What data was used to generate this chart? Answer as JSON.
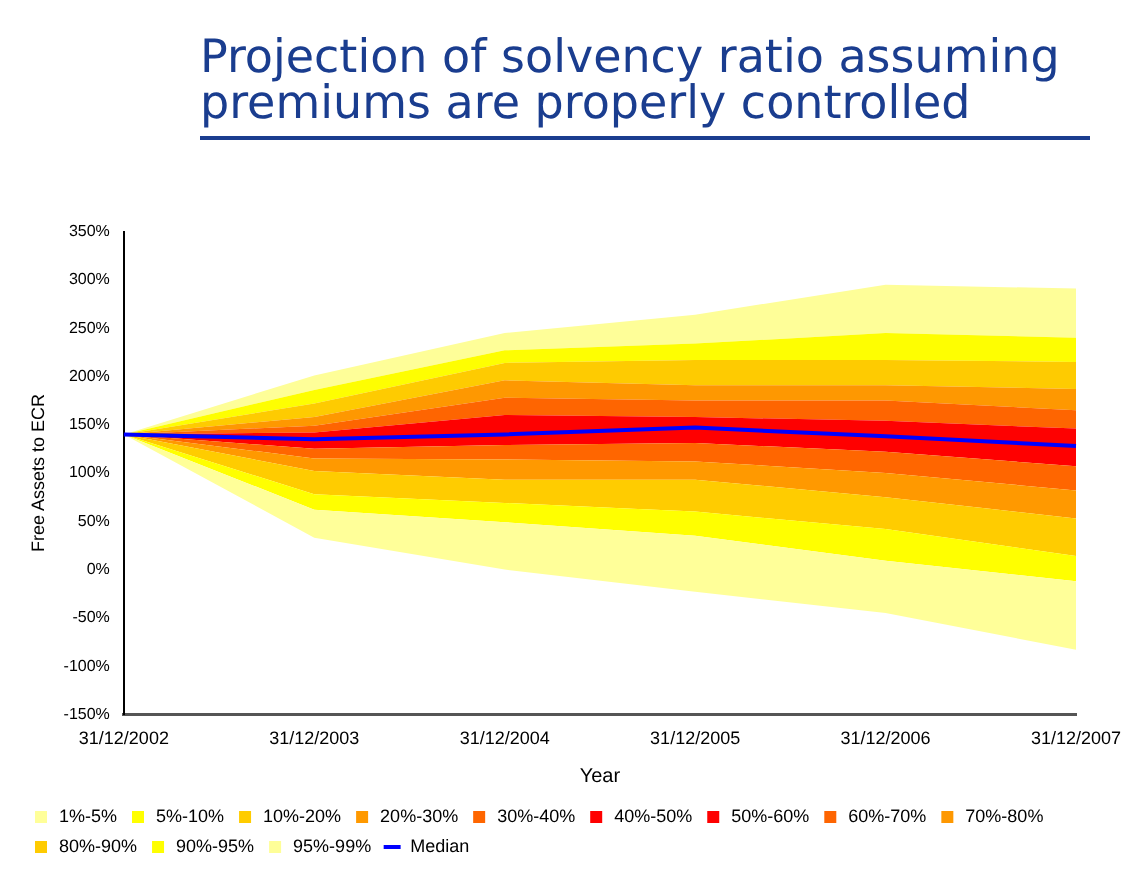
{
  "chart_data": {
    "type": "area",
    "title": "Projection of solvency ratio assuming premiums are properly controlled",
    "xlabel": "Year",
    "ylabel": "Free Assets to ECR",
    "categories": [
      "31/12/2002",
      "31/12/2003",
      "31/12/2004",
      "31/12/2005",
      "31/12/2006",
      "31/12/2007"
    ],
    "ylim": [
      -150,
      350
    ],
    "yticks": [
      {
        "value": -150,
        "label": "-150%"
      },
      {
        "value": -100,
        "label": "-100%"
      },
      {
        "value": -50,
        "label": "-50%"
      },
      {
        "value": 0,
        "label": "0%"
      },
      {
        "value": 50,
        "label": "50%"
      },
      {
        "value": 100,
        "label": "100%"
      },
      {
        "value": 150,
        "label": "150%"
      },
      {
        "value": 200,
        "label": "200%"
      },
      {
        "value": 250,
        "label": "250%"
      },
      {
        "value": 300,
        "label": "300%"
      },
      {
        "value": 350,
        "label": "350%"
      }
    ],
    "grid": false,
    "legend": "bottom",
    "series": [
      {
        "name": "1%-5%",
        "color": "#ffff99",
        "values": [
          null,
          null,
          null,
          null,
          null,
          null
        ],
        "lower": [
          140,
          33,
          0,
          -23,
          -45,
          -83
        ],
        "upper": [
          140,
          62,
          49,
          35,
          9,
          -12
        ]
      },
      {
        "name": "5%-10%",
        "color": "#ffff00",
        "values": [
          null,
          null,
          null,
          null,
          null,
          null
        ],
        "lower": [
          140,
          62,
          49,
          35,
          9,
          -12
        ],
        "upper": [
          140,
          78,
          69,
          60,
          42,
          14
        ]
      },
      {
        "name": "10%-20%",
        "color": "#ffcc00",
        "values": [
          null,
          null,
          null,
          null,
          null,
          null
        ],
        "lower": [
          140,
          78,
          69,
          60,
          42,
          14
        ],
        "upper": [
          140,
          102,
          93,
          93,
          75,
          53
        ]
      },
      {
        "name": "20%-30%",
        "color": "#ff9900",
        "values": [
          null,
          null,
          null,
          null,
          null,
          null
        ],
        "lower": [
          140,
          102,
          93,
          93,
          75,
          53
        ],
        "upper": [
          140,
          115,
          114,
          112,
          100,
          82
        ]
      },
      {
        "name": "30%-40%",
        "color": "#ff6600",
        "values": [
          null,
          null,
          null,
          null,
          null,
          null
        ],
        "lower": [
          140,
          115,
          114,
          112,
          100,
          82
        ],
        "upper": [
          140,
          125,
          129,
          131,
          122,
          107
        ]
      },
      {
        "name": "40%-50%",
        "color": "#ff0000",
        "values": [
          null,
          null,
          null,
          null,
          null,
          null
        ],
        "lower": [
          140,
          125,
          129,
          131,
          122,
          107
        ],
        "upper": [
          140,
          135,
          140,
          147,
          138,
          128
        ]
      },
      {
        "name": "50%-60%",
        "color": "#fe0101",
        "values": [
          null,
          null,
          null,
          null,
          null,
          null
        ],
        "lower": [
          140,
          135,
          140,
          147,
          138,
          128
        ],
        "upper": [
          140,
          142,
          160,
          158,
          154,
          146
        ]
      },
      {
        "name": "60%-70%",
        "color": "#fe6501",
        "values": [
          null,
          null,
          null,
          null,
          null,
          null
        ],
        "lower": [
          140,
          142,
          160,
          158,
          154,
          146
        ],
        "upper": [
          140,
          149,
          178,
          175,
          175,
          165
        ]
      },
      {
        "name": "70%-80%",
        "color": "#fe9801",
        "values": [
          null,
          null,
          null,
          null,
          null,
          null
        ],
        "lower": [
          140,
          149,
          178,
          175,
          175,
          165
        ],
        "upper": [
          140,
          158,
          196,
          191,
          191,
          187
        ]
      },
      {
        "name": "80%-90%",
        "color": "#fecb01",
        "values": [
          null,
          null,
          null,
          null,
          null,
          null
        ],
        "lower": [
          140,
          158,
          196,
          191,
          191,
          187
        ],
        "upper": [
          140,
          172,
          214,
          217,
          217,
          215
        ]
      },
      {
        "name": "90%-95%",
        "color": "#fefe01",
        "values": [
          null,
          null,
          null,
          null,
          null,
          null
        ],
        "lower": [
          140,
          172,
          214,
          217,
          217,
          215
        ],
        "upper": [
          140,
          186,
          227,
          234,
          245,
          240
        ]
      },
      {
        "name": "95%-99%",
        "color": "#fefe98",
        "values": [
          null,
          null,
          null,
          null,
          null,
          null
        ],
        "lower": [
          140,
          186,
          227,
          234,
          245,
          240
        ],
        "upper": [
          140,
          201,
          245,
          264,
          295,
          291
        ]
      },
      {
        "name": "Median",
        "type": "line",
        "color": "#0000ff",
        "values": [
          140,
          135,
          140,
          147,
          138,
          128
        ]
      }
    ]
  }
}
